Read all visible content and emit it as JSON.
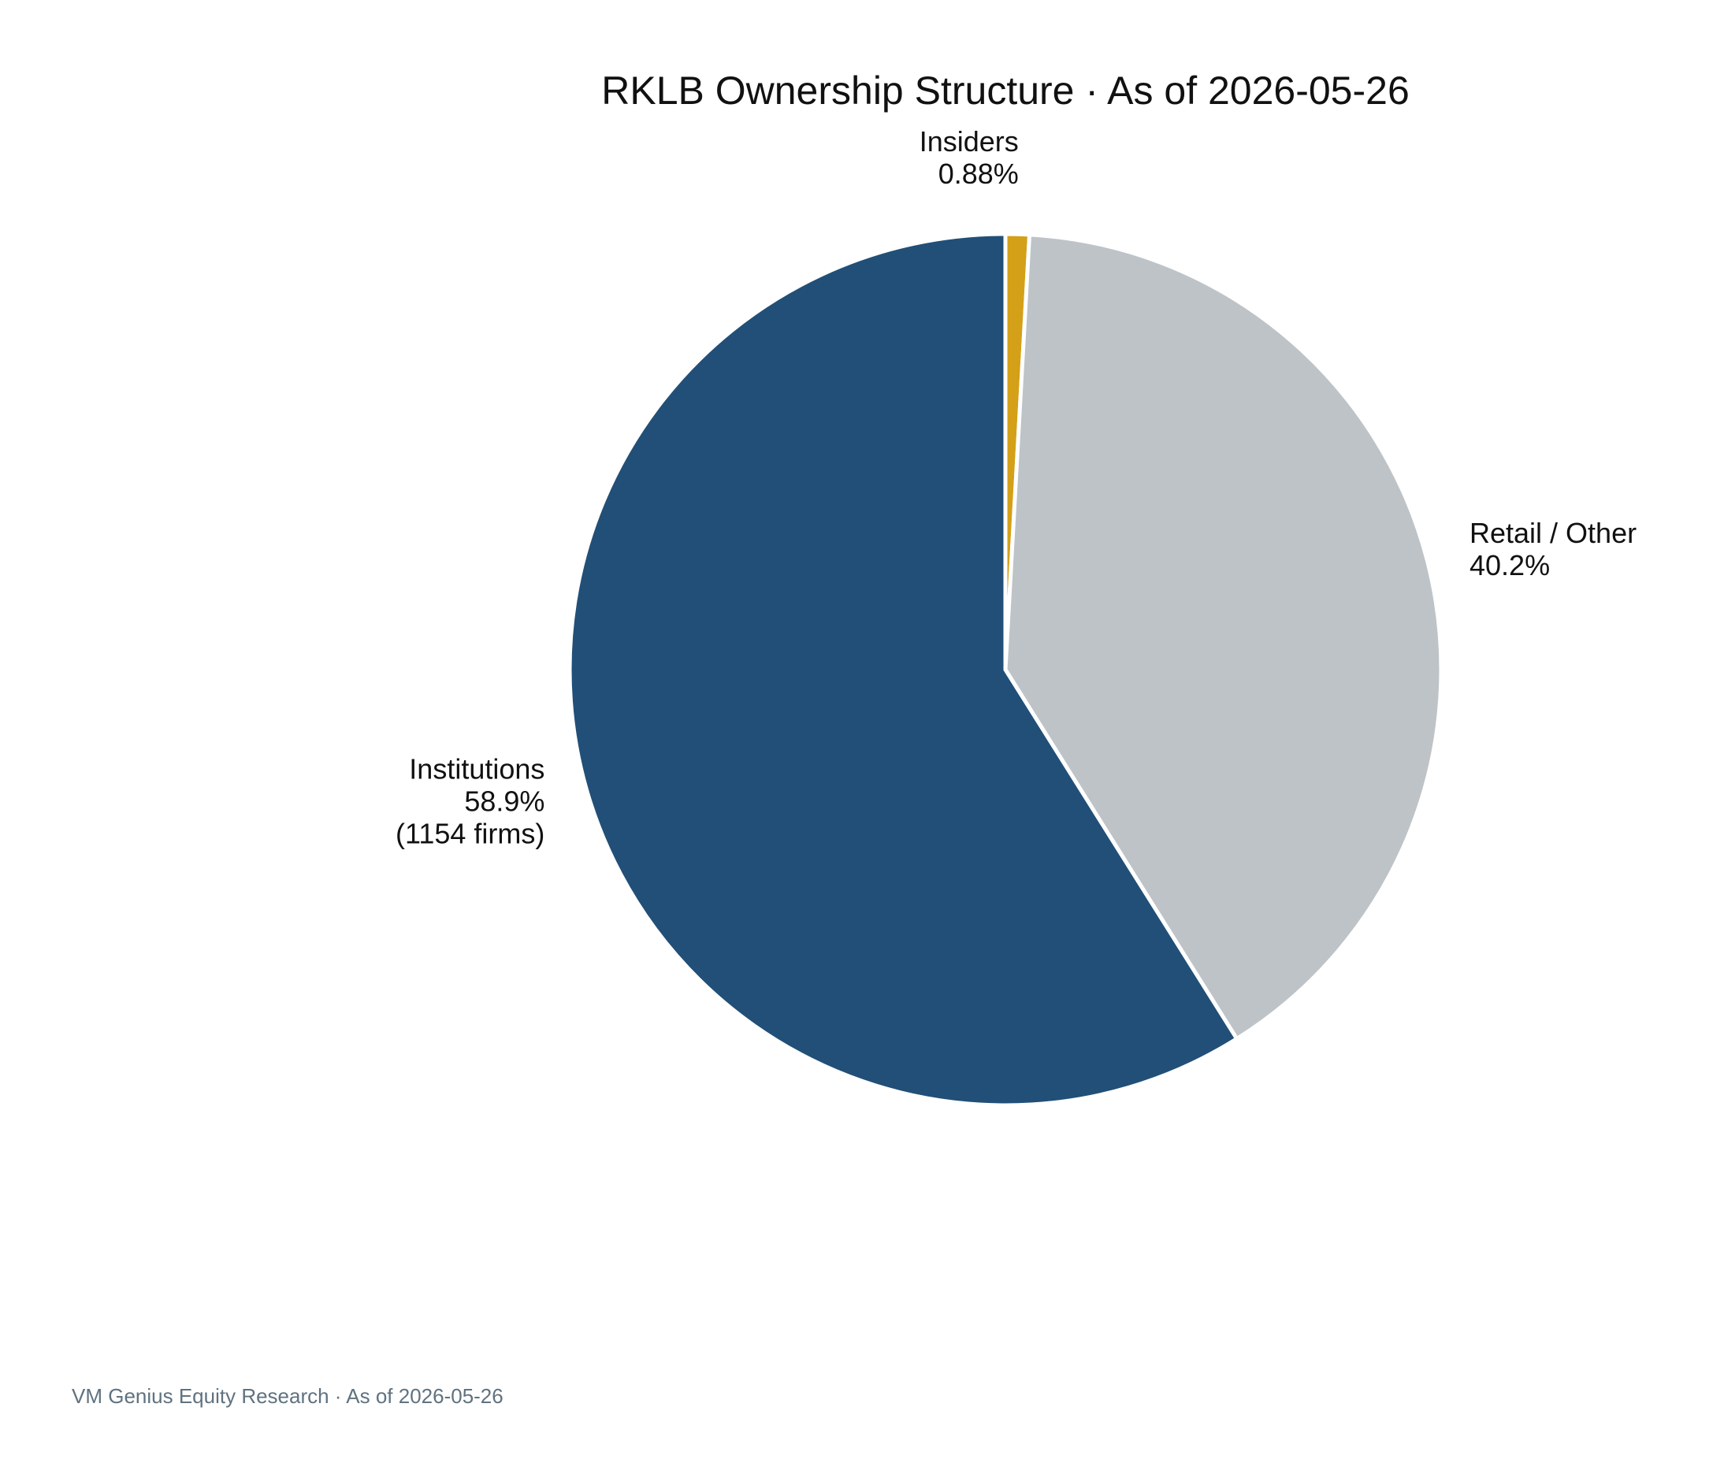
{
  "chart_data": {
    "type": "pie",
    "title": "RKLB Ownership Structure · As of 2026-05-26",
    "slices": [
      {
        "label": "Insiders",
        "value": 0.88,
        "value_label": "0.88%",
        "detail": "",
        "color": "#d4a017"
      },
      {
        "label": "Retail / Other",
        "value": 40.2,
        "value_label": "40.2%",
        "detail": "",
        "color": "#bec3c7"
      },
      {
        "label": "Institutions",
        "value": 58.9,
        "value_label": "58.9%",
        "detail": "(1154 firms)",
        "color": "#214f77"
      }
    ],
    "start_angle": "12 o'clock",
    "direction": "clockwise",
    "legend": "none",
    "grid": false
  },
  "footer": {
    "source": "VM Genius Equity Research · As of 2026-05-26"
  },
  "colors": {
    "slice_edge": "#ffffff",
    "label_text": "#111111",
    "footer_text": "#5f7280"
  }
}
